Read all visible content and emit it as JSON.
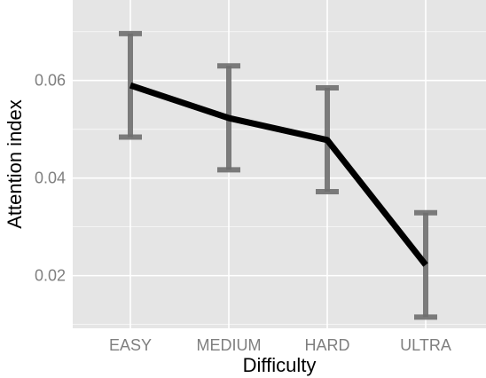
{
  "chart_data": {
    "type": "line",
    "categories": [
      "EASY",
      "MEDIUM",
      "HARD",
      "ULTRA"
    ],
    "values": [
      0.059,
      0.0523,
      0.0478,
      0.0222
    ],
    "error_low": [
      0.0484,
      0.0417,
      0.0372,
      0.0115
    ],
    "error_high": [
      0.0696,
      0.063,
      0.0585,
      0.0329
    ],
    "xlabel": "Difficulty",
    "ylabel": "Attention index",
    "yticks": [
      0.02,
      0.04,
      0.06
    ],
    "ytick_labels": [
      "0.02",
      "0.04",
      "0.06"
    ],
    "ylim": [
      0.0092,
      0.0765
    ],
    "grid": true,
    "colors": {
      "panel_background": "#e5e5e5",
      "grid_line": "#ffffff",
      "line": "#000000",
      "error_bar": "#6e6e6e"
    }
  }
}
